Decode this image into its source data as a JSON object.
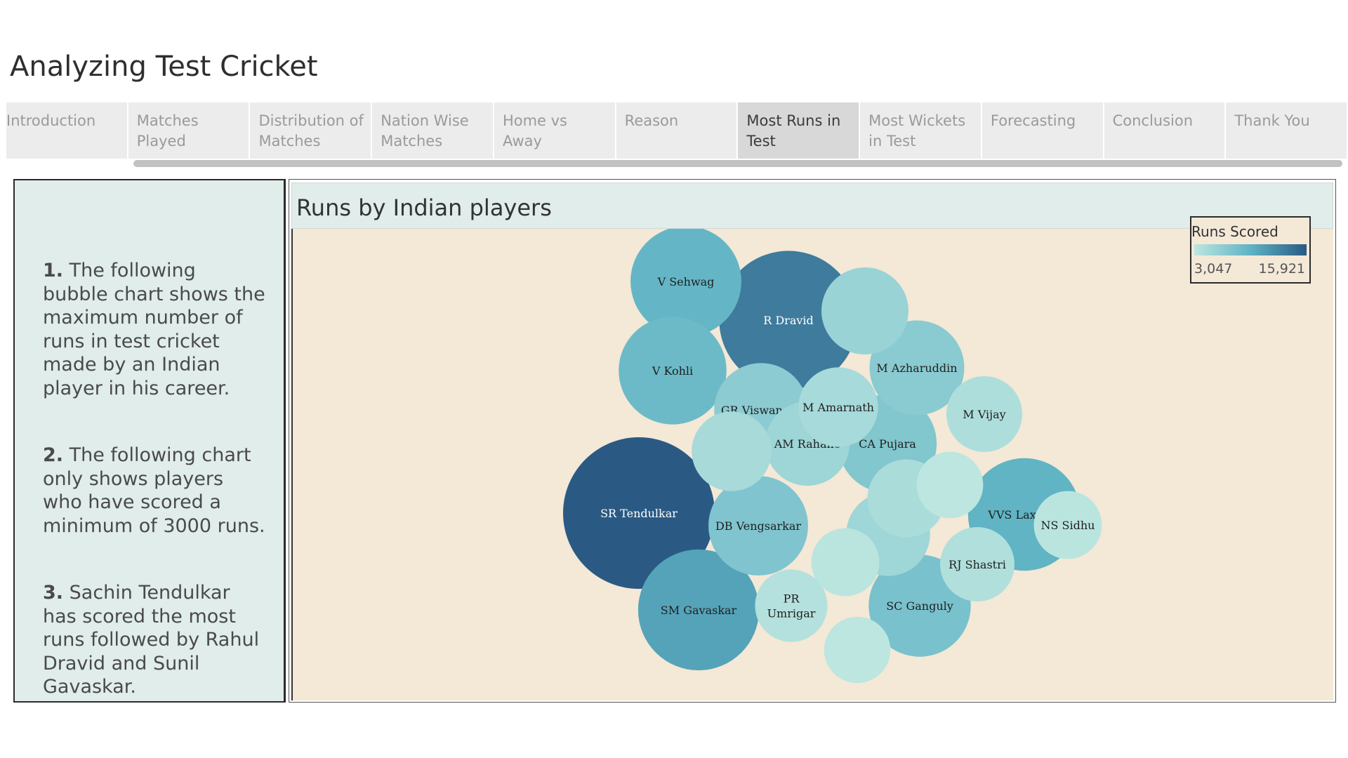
{
  "story": {
    "title": "Analyzing Test Cricket"
  },
  "tabs": [
    {
      "label": "Introduction",
      "active": false
    },
    {
      "label": "Matches Played",
      "active": false
    },
    {
      "label": "Distribution of Matches",
      "active": false
    },
    {
      "label": "Nation Wise Matches",
      "active": false
    },
    {
      "label": "Home vs Away",
      "active": false
    },
    {
      "label": "Reason",
      "active": false
    },
    {
      "label": "Most Runs in Test",
      "active": true
    },
    {
      "label": "Most Wickets in Test",
      "active": false
    },
    {
      "label": "Forecasting",
      "active": false
    },
    {
      "label": "Conclusion",
      "active": false
    },
    {
      "label": "Thank You",
      "active": false
    }
  ],
  "notes": [
    {
      "num": "1.",
      "text": " The following bubble chart shows the maximum number of runs in test cricket made by an Indian player in his career."
    },
    {
      "num": "2.",
      "text": " The following chart only shows players who have scored a minimum of 3000 runs."
    },
    {
      "num": "3.",
      "text": " Sachin Tendulkar has scored the most runs followed by Rahul Dravid and Sunil Gavaskar."
    }
  ],
  "chart_data": {
    "type": "bubble",
    "title": "Runs by Indian players",
    "legend": {
      "title": "Runs Scored",
      "min_label": "3,047",
      "max_label": "15,921",
      "placement": "top-right"
    },
    "color_range": [
      "#bde6e0",
      "#2a5a84"
    ],
    "series": [
      {
        "label": "SR Tendulkar",
        "value": 15921
      },
      {
        "label": "R Dravid",
        "value": 13265
      },
      {
        "label": "SM Gavaskar",
        "value": 10122
      },
      {
        "label": "VVS Laxman",
        "value": 8781
      },
      {
        "label": "V Sehwag",
        "value": 8503
      },
      {
        "label": "V Kohli",
        "value": 8043
      },
      {
        "label": "SC Ganguly",
        "value": 7212
      },
      {
        "label": "DB Vengsarkar",
        "value": 6868
      },
      {
        "label": "CA Pujara",
        "value": 6713
      },
      {
        "label": "M Azharuddin",
        "value": 6215
      },
      {
        "label": "GR Viswanath",
        "value": 6080
      },
      {
        "label": "",
        "value": 5248
      },
      {
        "label": "AM Rahane",
        "value": 4931
      },
      {
        "label": "",
        "value": 4868
      },
      {
        "label": "",
        "value": 4400
      },
      {
        "label": "M Amarnath",
        "value": 4378
      },
      {
        "label": "",
        "value": 4202
      },
      {
        "label": "NS Sidhu",
        "value": 3202
      },
      {
        "label": "M Vijay",
        "value": 3982
      },
      {
        "label": "RJ Shastri",
        "value": 3830
      },
      {
        "label": "PR Umrigar",
        "value": 3631
      },
      {
        "label": "",
        "value": 3208
      },
      {
        "label": "",
        "value": 3061
      },
      {
        "label": "",
        "value": 3047
      }
    ]
  }
}
